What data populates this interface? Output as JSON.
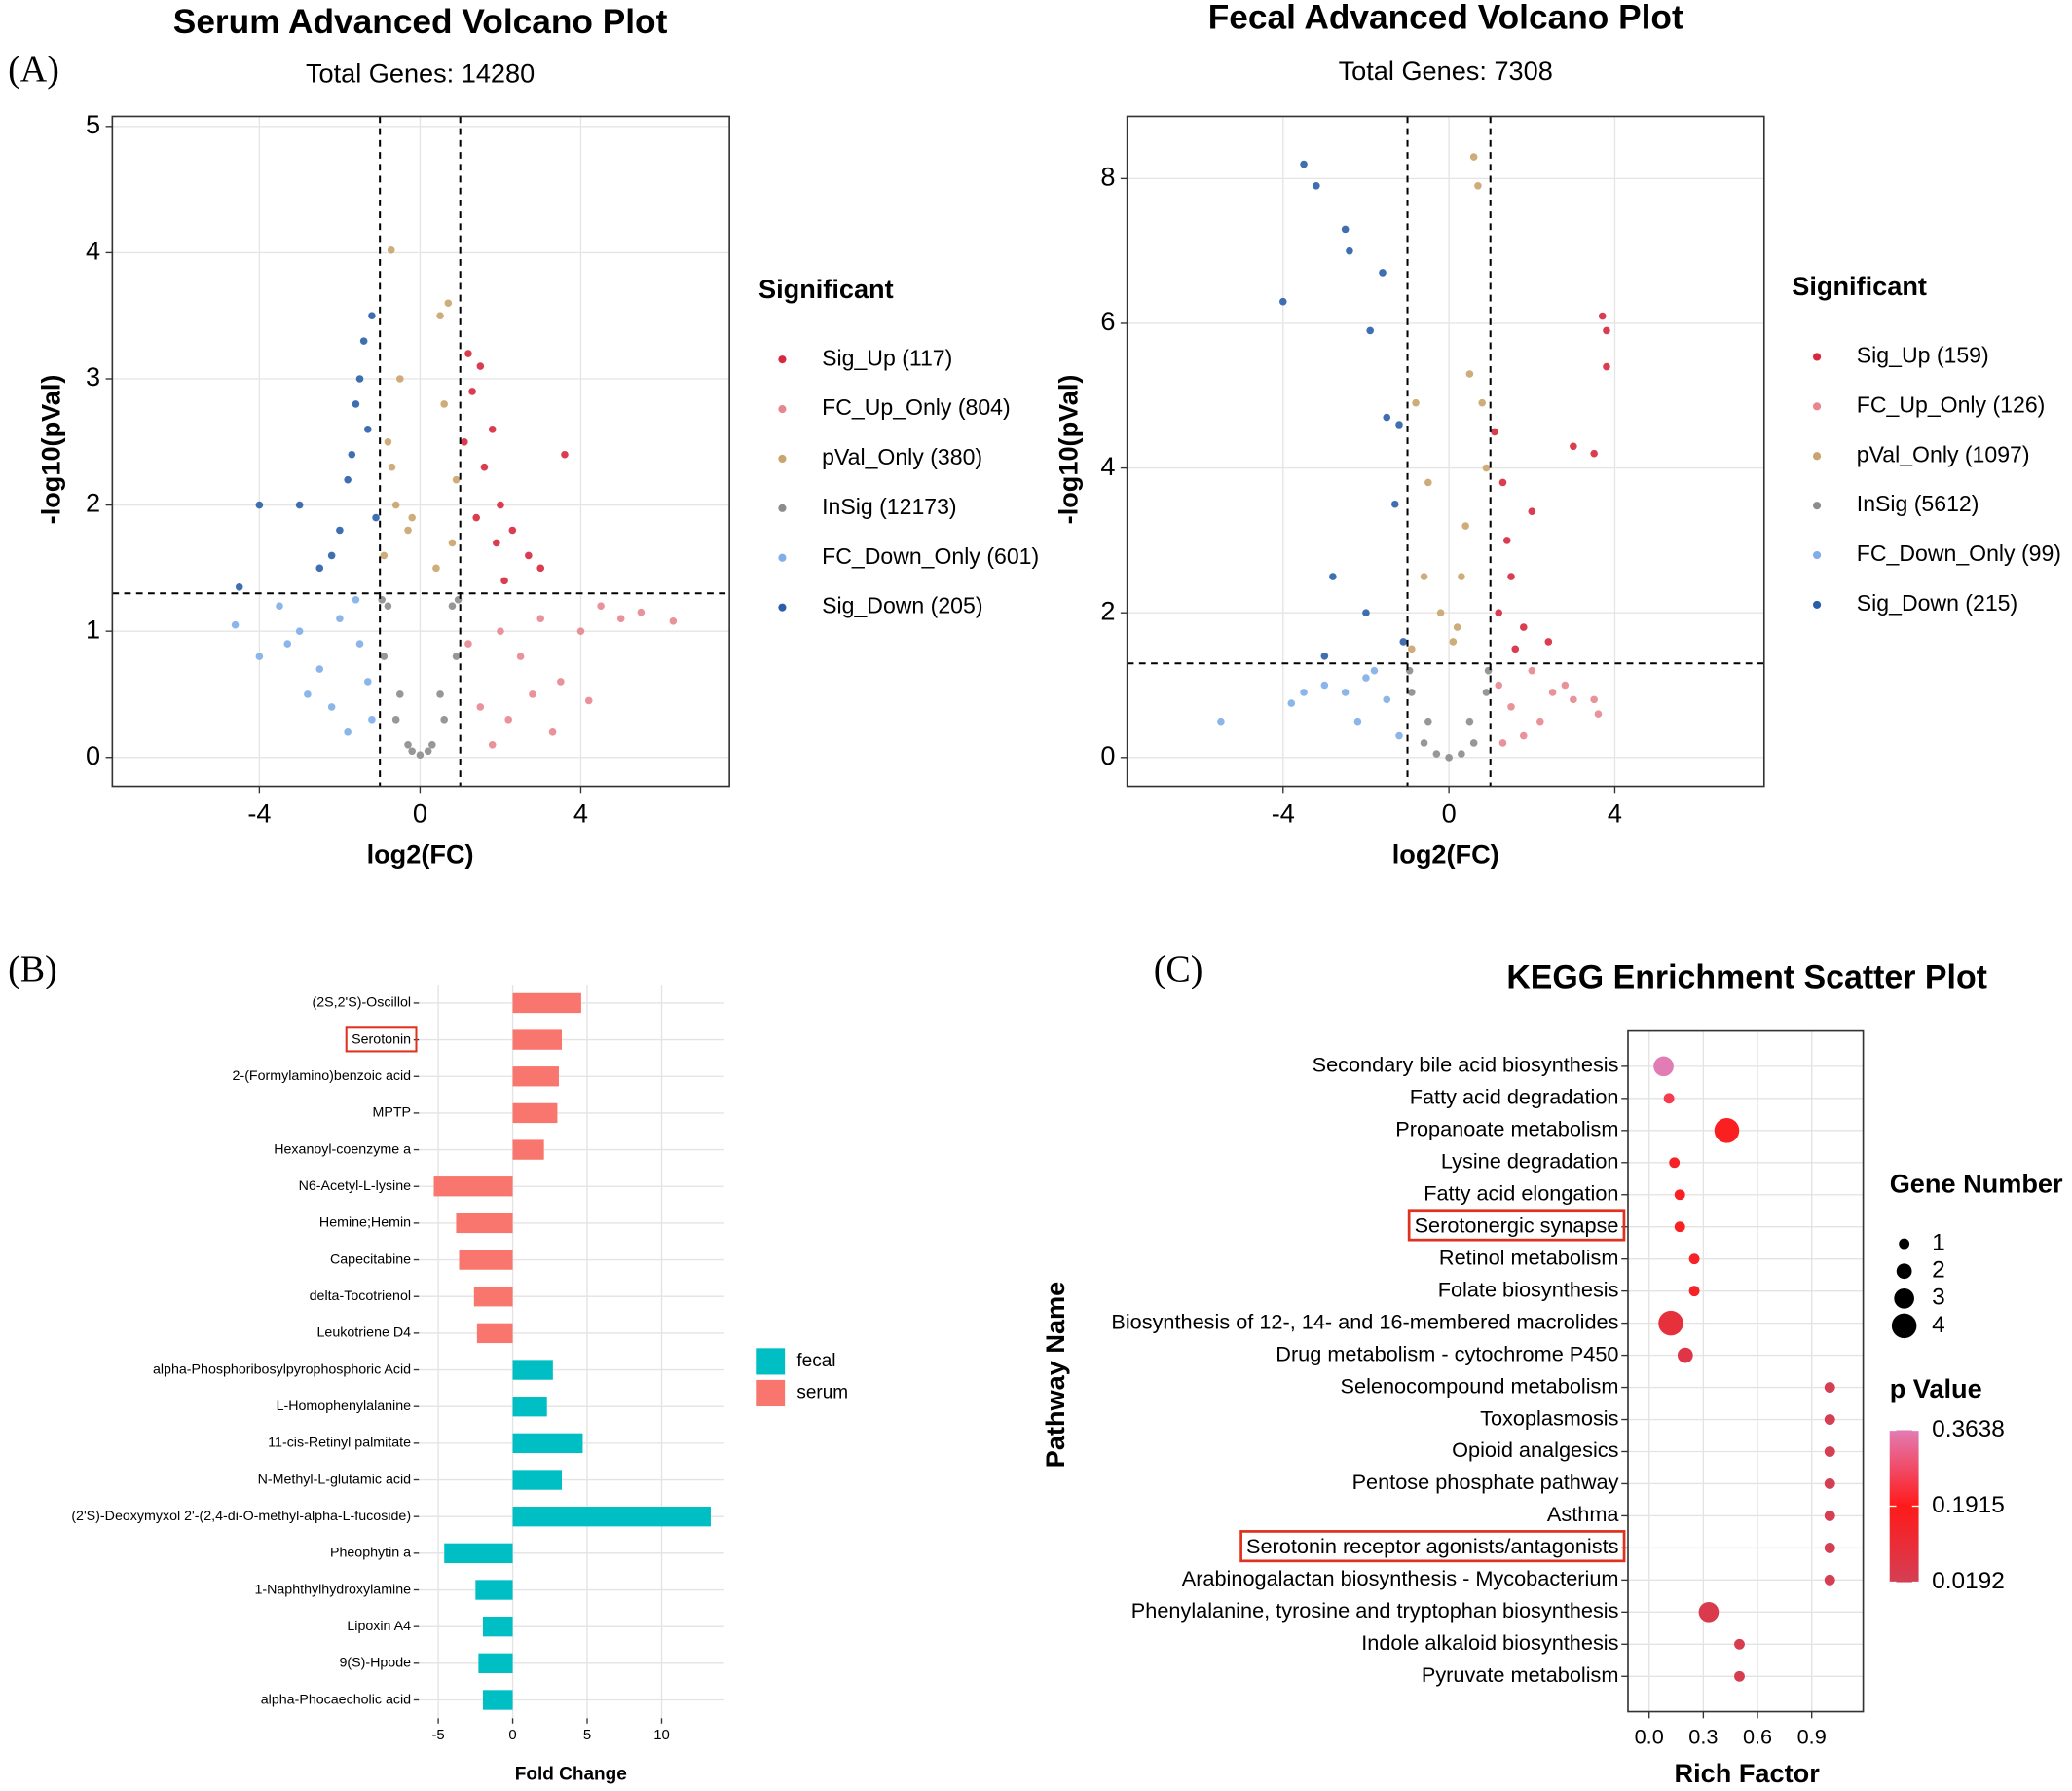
{
  "chart_data": [
    {
      "type": "scatter",
      "panel_label": "(A)",
      "title": "Serum Advanced Volcano Plot",
      "subtitle": "Total Genes: 14280",
      "xlabel": "log2(FC)",
      "ylabel": "-log10(pVal)",
      "legend_title": "Significant",
      "xlim": [
        -7.66,
        7.7
      ],
      "ylim": [
        -0.23,
        5.08
      ],
      "xticks": [
        -4,
        0,
        4
      ],
      "yticks": [
        0,
        1,
        2,
        3,
        4,
        5
      ],
      "grid": true,
      "thresholds": {
        "x": [
          -1,
          1
        ],
        "y": [
          1.3
        ]
      },
      "series": [
        {
          "name": "Sig_Up (117)",
          "color": "#d7283d",
          "x": [
            1.2,
            1.5,
            1.8,
            2.0,
            2.3,
            1.3,
            1.6,
            2.7,
            3.0,
            1.1,
            1.4,
            2.1,
            1.9,
            3.6
          ],
          "y": [
            3.2,
            3.1,
            2.6,
            2.0,
            1.8,
            2.9,
            2.3,
            1.6,
            1.5,
            2.5,
            1.9,
            1.4,
            1.7,
            2.4
          ]
        },
        {
          "name": "FC_Up_Only (804)",
          "color": "#e8868f",
          "x": [
            1.5,
            2.0,
            2.5,
            3.0,
            3.5,
            4.0,
            4.5,
            5.0,
            5.5,
            6.3,
            2.2,
            3.3,
            1.2,
            2.8,
            4.2,
            1.8
          ],
          "y": [
            0.4,
            1.0,
            0.8,
            1.1,
            0.6,
            1.0,
            1.2,
            1.1,
            1.15,
            1.08,
            0.3,
            0.2,
            0.9,
            0.5,
            0.45,
            0.1
          ]
        },
        {
          "name": "pVal_Only (380)",
          "color": "#c9a46c",
          "x": [
            -0.8,
            -0.5,
            -0.3,
            -0.72,
            0.5,
            0.7,
            0.9,
            -0.9,
            -0.6,
            0.4,
            -0.2,
            0.8,
            0.6,
            -0.7
          ],
          "y": [
            2.5,
            3.0,
            1.8,
            4.02,
            3.5,
            3.6,
            2.2,
            1.6,
            2.0,
            1.5,
            1.9,
            1.7,
            2.8,
            2.3
          ]
        },
        {
          "name": "InSig (12173)",
          "color": "#8c8c8c",
          "x": [
            0,
            -0.3,
            0.3,
            -0.6,
            0.6,
            -0.9,
            0.9,
            -0.8,
            0.8,
            -0.5,
            0.5,
            -0.2,
            0.2,
            -0.95,
            0.95
          ],
          "y": [
            0.02,
            0.1,
            0.1,
            0.3,
            0.3,
            0.8,
            0.8,
            1.2,
            1.2,
            0.5,
            0.5,
            0.05,
            0.05,
            1.25,
            1.25
          ]
        },
        {
          "name": "FC_Down_Only (601)",
          "color": "#80aee8",
          "x": [
            -1.2,
            -1.5,
            -2.0,
            -2.5,
            -3.0,
            -3.5,
            -4.0,
            -4.6,
            -2.2,
            -1.8,
            -1.3,
            -2.8,
            -3.3,
            -1.6
          ],
          "y": [
            0.3,
            0.9,
            1.1,
            0.7,
            1.0,
            1.2,
            0.8,
            1.05,
            0.4,
            0.2,
            0.6,
            0.5,
            0.9,
            1.25
          ]
        },
        {
          "name": "Sig_Down (205)",
          "color": "#2a5fa8",
          "x": [
            -1.2,
            -1.4,
            -1.6,
            -1.8,
            -2.0,
            -2.5,
            -3.0,
            -4.0,
            -4.5,
            -1.3,
            -1.5,
            -2.2,
            -1.1,
            -1.7
          ],
          "y": [
            3.5,
            3.3,
            2.8,
            2.2,
            1.8,
            1.5,
            2.0,
            2.0,
            1.35,
            2.6,
            3.0,
            1.6,
            1.9,
            2.4
          ]
        }
      ]
    },
    {
      "type": "scatter",
      "title": "Fecal Advanced Volcano Plot",
      "subtitle": "Total Genes: 7308",
      "xlabel": "log2(FC)",
      "ylabel": "-log10(pVal)",
      "legend_title": "Significant",
      "xlim": [
        -7.76,
        7.6
      ],
      "ylim": [
        -0.4,
        8.86
      ],
      "xticks": [
        -4,
        0,
        4
      ],
      "yticks": [
        0,
        2,
        4,
        6,
        8
      ],
      "grid": true,
      "thresholds": {
        "x": [
          -1,
          1
        ],
        "y": [
          1.3
        ]
      },
      "series": [
        {
          "name": "Sig_Up (159)",
          "color": "#d7283d",
          "x": [
            1.1,
            1.3,
            1.5,
            1.8,
            2.0,
            3.7,
            3.8,
            3.8,
            3.0,
            3.5,
            1.2,
            1.6,
            2.4,
            1.4
          ],
          "y": [
            4.5,
            3.8,
            2.5,
            1.8,
            3.4,
            6.1,
            5.9,
            5.4,
            4.3,
            4.2,
            2.0,
            1.5,
            1.6,
            3.0
          ]
        },
        {
          "name": "FC_Up_Only (126)",
          "color": "#e8868f",
          "x": [
            1.2,
            1.5,
            2.0,
            2.5,
            3.0,
            3.5,
            3.6,
            1.8,
            2.2,
            1.3,
            2.8
          ],
          "y": [
            1.0,
            0.7,
            1.2,
            0.9,
            0.8,
            0.8,
            0.6,
            0.3,
            0.5,
            0.2,
            1.0
          ]
        },
        {
          "name": "pVal_Only (1097)",
          "color": "#c9a46c",
          "x": [
            0.6,
            0.7,
            0.8,
            -0.8,
            -0.5,
            -0.2,
            0.3,
            0.5,
            0.9,
            -0.9,
            -0.6,
            0.1,
            0.4,
            0.2
          ],
          "y": [
            8.3,
            7.9,
            4.9,
            4.9,
            3.8,
            2.0,
            2.5,
            5.3,
            4.0,
            1.5,
            2.5,
            1.6,
            3.2,
            1.8
          ]
        },
        {
          "name": "InSig (5612)",
          "color": "#8c8c8c",
          "x": [
            0,
            -0.3,
            0.3,
            -0.6,
            0.6,
            -0.9,
            0.9,
            -0.5,
            0.5,
            -0.95,
            0.95
          ],
          "y": [
            0,
            0.05,
            0.05,
            0.2,
            0.2,
            0.9,
            0.9,
            0.5,
            0.5,
            1.2,
            1.2
          ]
        },
        {
          "name": "FC_Down_Only (99)",
          "color": "#80aee8",
          "x": [
            -5.5,
            -3.8,
            -3.0,
            -2.5,
            -2.0,
            -1.5,
            -1.2,
            -1.8,
            -3.5,
            -2.2
          ],
          "y": [
            0.5,
            0.75,
            1.0,
            0.9,
            1.1,
            0.8,
            0.3,
            1.2,
            0.9,
            0.5
          ]
        },
        {
          "name": "Sig_Down (215)",
          "color": "#2a5fa8",
          "x": [
            -3.5,
            -3.2,
            -2.5,
            -2.4,
            -1.6,
            -1.9,
            -4.0,
            -1.5,
            -1.2,
            -2.8,
            -3.0,
            -1.3,
            -2.0,
            -1.1
          ],
          "y": [
            8.2,
            7.9,
            7.3,
            7.0,
            6.7,
            5.9,
            6.3,
            4.7,
            4.6,
            2.5,
            1.4,
            3.5,
            2.0,
            1.6
          ]
        }
      ]
    },
    {
      "type": "bar",
      "orientation": "horizontal",
      "panel_label": "(B)",
      "xlabel": "Fold Change",
      "categories": [
        "(2S,2'S)-Oscillol",
        "Serotonin",
        "2-(Formylamino)benzoic acid",
        "MPTP",
        "Hexanoyl-coenzyme a",
        "N6-Acetyl-L-lysine",
        "Hemine;Hemin",
        "Capecitabine",
        "delta-Tocotrienol",
        "Leukotriene D4",
        "alpha-Phosphoribosylpyrophosphoric Acid",
        "L-Homophenylalanine",
        "11-cis-Retinyl palmitate",
        "N-Methyl-L-glutamic acid",
        "(2'S)-Deoxymyxol 2'-(2,4-di-O-methyl-alpha-L-fucoside)",
        "Pheophytin a",
        "1-Naphthylhydroxylamine",
        "Lipoxin A4",
        "9(S)-Hpode",
        "alpha-Phocaecholic acid"
      ],
      "series": [
        {
          "name": "fecal",
          "color": "#00bfc4",
          "values": [
            null,
            null,
            null,
            null,
            null,
            null,
            null,
            null,
            null,
            null,
            2.7,
            2.3,
            4.7,
            3.3,
            13.3,
            -4.6,
            -2.5,
            -2.0,
            -2.3,
            -2.0
          ]
        },
        {
          "name": "serum",
          "color": "#f8766d",
          "values": [
            4.6,
            3.3,
            3.1,
            3.0,
            2.1,
            -5.3,
            -3.8,
            -3.6,
            -2.6,
            -2.4,
            null,
            null,
            null,
            null,
            null,
            null,
            null,
            null,
            null,
            null
          ]
        }
      ],
      "xlim": [
        -6.3,
        14.2
      ],
      "xticks": [
        -5,
        0,
        5,
        10
      ],
      "grid": true,
      "highlighted": [
        1
      ]
    },
    {
      "type": "bubble",
      "panel_label": "(C)",
      "title": "KEGG Enrichment Scatter Plot",
      "xlabel": "Rich Factor",
      "ylabel": "Pathway Name",
      "categories": [
        "Secondary bile acid biosynthesis",
        "Fatty acid degradation",
        "Propanoate metabolism",
        "Lysine degradation",
        "Fatty acid elongation",
        "Serotonergic synapse",
        "Retinol metabolism",
        "Folate biosynthesis",
        "Biosynthesis of 12-, 14- and 16-membered macrolides",
        "Drug metabolism - cytochrome P450",
        "Selenocompound metabolism",
        "Toxoplasmosis",
        "Opioid analgesics",
        "Pentose phosphate pathway",
        "Asthma",
        "Serotonin receptor agonists/antagonists",
        "Arabinogalactan biosynthesis - Mycobacterium",
        "Phenylalanine, tyrosine and tryptophan biosynthesis",
        "Indole alkaloid biosynthesis",
        "Pyruvate metabolism"
      ],
      "x": [
        0.08,
        0.11,
        0.43,
        0.14,
        0.17,
        0.17,
        0.25,
        0.25,
        0.12,
        0.2,
        1.0,
        1.0,
        1.0,
        1.0,
        1.0,
        1.0,
        1.0,
        0.33,
        0.5,
        0.5
      ],
      "sizes": [
        3,
        1,
        4,
        1,
        1,
        1,
        1,
        1,
        4,
        2,
        1,
        1,
        1,
        1,
        1,
        1,
        1,
        3,
        1,
        1
      ],
      "pvalues": [
        0.3638,
        0.25,
        0.17,
        0.15,
        0.17,
        0.17,
        0.15,
        0.15,
        0.09,
        0.06,
        0.0192,
        0.0192,
        0.0192,
        0.0192,
        0.0192,
        0.0192,
        0.0192,
        0.04,
        0.03,
        0.03
      ],
      "xlim": [
        -0.117,
        1.185
      ],
      "xticks": [
        {
          "value": 0,
          "label": "0.0"
        },
        0.3,
        0.6,
        0.9
      ],
      "grid": true,
      "size_legend_title": "Gene Number",
      "size_legend": [
        1,
        2,
        3,
        4
      ],
      "color_legend_title": "p Value",
      "color_ticks": [
        0.3638,
        0.1915,
        0.0192
      ],
      "colorscale": [
        [
          0.0192,
          "#d43f54"
        ],
        [
          0.1915,
          "#ff1a1a"
        ],
        [
          0.3638,
          "#e27cb4"
        ]
      ],
      "highlighted": [
        5,
        15
      ]
    }
  ]
}
